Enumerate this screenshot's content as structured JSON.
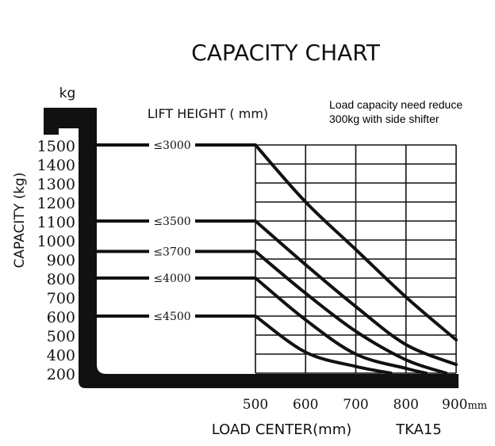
{
  "chart_data": {
    "type": "line",
    "title": "CAPACITY CHART",
    "unit_label": "kg",
    "ylabel": "CAPACITY (kg)",
    "xlabel": "LOAD CENTER(mm)",
    "subtitle": "LIFT HEIGHT ( mm)",
    "model": "TKA15",
    "note": "Load capacity need reduce 300kg with side shifter",
    "x_unit": "mm",
    "x_ticks": [
      500,
      600,
      700,
      800,
      900
    ],
    "y_ticks": [
      200,
      400,
      500,
      600,
      700,
      800,
      900,
      1000,
      1100,
      1200,
      1300,
      1400,
      1500
    ],
    "grid": true,
    "series": [
      {
        "name": "≤3000",
        "x": [
          0,
          500,
          600,
          700,
          800,
          900
        ],
        "y": [
          1500,
          1500,
          1200,
          950,
          700,
          475
        ]
      },
      {
        "name": "≤3500",
        "x": [
          0,
          500,
          600,
          700,
          800,
          900
        ],
        "y": [
          1100,
          1100,
          870,
          650,
          450,
          290
        ]
      },
      {
        "name": "≤3700",
        "x": [
          0,
          500,
          600,
          700,
          800,
          880
        ],
        "y": [
          940,
          940,
          720,
          520,
          340,
          200
        ]
      },
      {
        "name": "≤4000",
        "x": [
          0,
          500,
          600,
          700,
          800,
          840
        ],
        "y": [
          800,
          800,
          580,
          400,
          250,
          200
        ]
      },
      {
        "name": "≤4500",
        "x": [
          0,
          500,
          600,
          700,
          770
        ],
        "y": [
          600,
          600,
          410,
          270,
          200
        ]
      }
    ]
  }
}
